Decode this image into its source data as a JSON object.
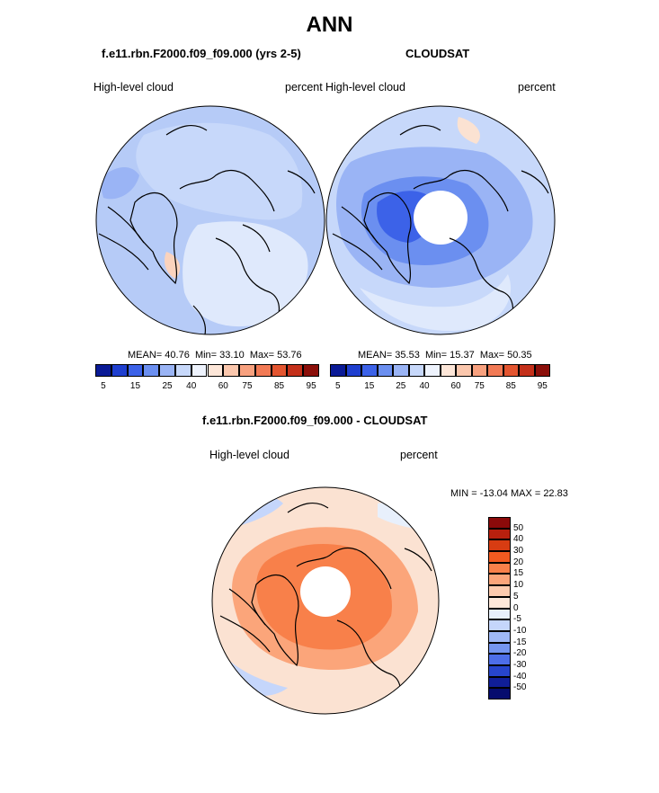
{
  "figure": {
    "title": "ANN",
    "panel1_title": "f.e11.rbn.F2000.f09_f09.000 (yrs 2-5)",
    "panel2_title": "CLOUDSAT",
    "panel3_title": "f.e11.rbn.F2000.f09_f09.000 - CLOUDSAT"
  },
  "chart_data": [
    {
      "type": "heatmap",
      "projection": "north-polar-stereographic",
      "left_label": "High-level cloud",
      "right_label": "percent",
      "stats": {
        "mean_label": "MEAN=",
        "mean": "40.76",
        "min_label": "Min=",
        "min": "33.10",
        "max_label": "Max=",
        "max": "53.76"
      },
      "colorbar_orientation": "horizontal",
      "colorbar_tick_labels": [
        "5",
        "15",
        "25",
        "40",
        "60",
        "75",
        "85",
        "95"
      ],
      "dominant_range": [
        30,
        50
      ]
    },
    {
      "type": "heatmap",
      "projection": "north-polar-stereographic",
      "left_label": "High-level cloud",
      "right_label": "percent",
      "stats": {
        "mean_label": "MEAN=",
        "mean": "35.53",
        "min_label": "Min=",
        "min": "15.37",
        "max_label": "Max=",
        "max": "50.35"
      },
      "colorbar_orientation": "horizontal",
      "colorbar_tick_labels": [
        "5",
        "15",
        "25",
        "40",
        "60",
        "75",
        "85",
        "95"
      ],
      "missing_data_near_pole": true
    },
    {
      "type": "heatmap",
      "projection": "north-polar-stereographic",
      "left_label": "High-level cloud",
      "right_label": "percent",
      "stats_text": "MIN = -13.04 MAX =  22.83",
      "colorbar_orientation": "vertical",
      "colorbar_tick_labels": [
        "50",
        "40",
        "30",
        "20",
        "15",
        "10",
        "5",
        "0",
        "-5",
        "-10",
        "-15",
        "-20",
        "-30",
        "-40",
        "-50"
      ],
      "missing_data_near_pole": true
    }
  ],
  "colors": {
    "seq_scale": [
      "#0a1a96",
      "#1f3fcf",
      "#3c62e8",
      "#6b8ff0",
      "#9ab4f5",
      "#c7d8fa",
      "#eef3fd",
      "#fde6d8",
      "#fbc7ad",
      "#f8a17f",
      "#f27a55",
      "#e35530",
      "#c4301a",
      "#8b0f0a"
    ],
    "diff_scale": [
      "#8b0a0a",
      "#b8200e",
      "#d83c12",
      "#f25a20",
      "#f8804a",
      "#fba57a",
      "#fdcbae",
      "#fee8da",
      "#e8f0fc",
      "#c5d6fb",
      "#9fb8f6",
      "#7596f0",
      "#4d6ee8",
      "#2745cc",
      "#101e98",
      "#060c6e"
    ],
    "map_base_1": "#b6cbf7",
    "map_base_2": "#9ab4f5",
    "map_base_3": "#fbe2d2",
    "coastline": "#000000"
  }
}
